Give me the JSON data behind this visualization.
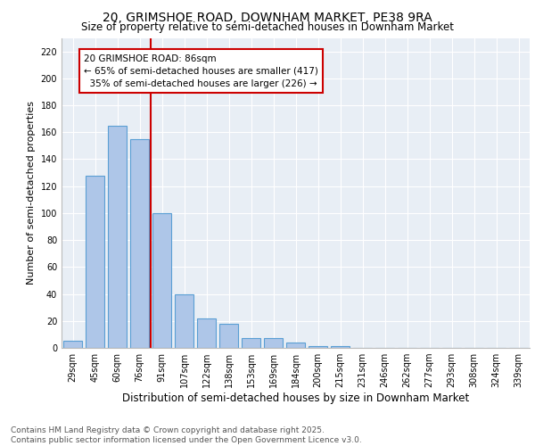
{
  "title1": "20, GRIMSHOE ROAD, DOWNHAM MARKET, PE38 9RA",
  "title2": "Size of property relative to semi-detached houses in Downham Market",
  "xlabel": "Distribution of semi-detached houses by size in Downham Market",
  "ylabel": "Number of semi-detached properties",
  "categories": [
    "29sqm",
    "45sqm",
    "60sqm",
    "76sqm",
    "91sqm",
    "107sqm",
    "122sqm",
    "138sqm",
    "153sqm",
    "169sqm",
    "184sqm",
    "200sqm",
    "215sqm",
    "231sqm",
    "246sqm",
    "262sqm",
    "277sqm",
    "293sqm",
    "308sqm",
    "324sqm",
    "339sqm"
  ],
  "values": [
    5,
    128,
    165,
    155,
    100,
    40,
    22,
    18,
    7,
    7,
    4,
    1,
    1,
    0,
    0,
    0,
    0,
    0,
    0,
    0,
    0
  ],
  "bar_color": "#aec6e8",
  "bar_edge_color": "#5a9fd4",
  "line_color": "#cc0000",
  "annotation_text": "20 GRIMSHOE ROAD: 86sqm\n← 65% of semi-detached houses are smaller (417)\n  35% of semi-detached houses are larger (226) →",
  "annotation_box_color": "#ffffff",
  "annotation_box_edge": "#cc0000",
  "ylim": [
    0,
    230
  ],
  "yticks": [
    0,
    20,
    40,
    60,
    80,
    100,
    120,
    140,
    160,
    180,
    200,
    220
  ],
  "background_color": "#e8eef5",
  "footer_text": "Contains HM Land Registry data © Crown copyright and database right 2025.\nContains public sector information licensed under the Open Government Licence v3.0.",
  "title1_fontsize": 10,
  "title2_fontsize": 8.5,
  "tick_fontsize": 7,
  "xlabel_fontsize": 8.5,
  "ylabel_fontsize": 8,
  "footer_fontsize": 6.5,
  "annot_fontsize": 7.5
}
